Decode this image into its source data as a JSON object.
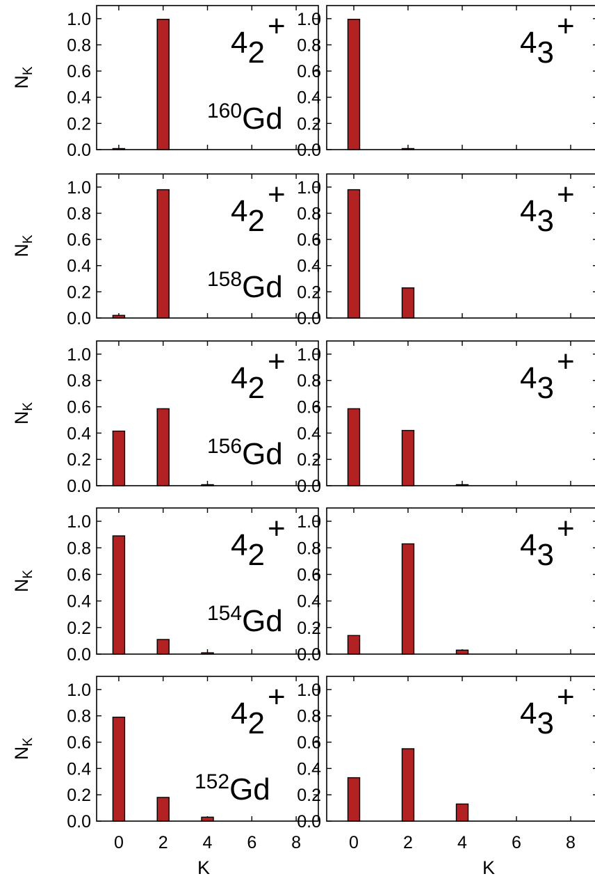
{
  "chart_data": {
    "type": "bar",
    "x_label": "K",
    "y_label_base": "N",
    "y_label_sub": "K",
    "x_ticks": [
      0,
      2,
      4,
      6,
      8
    ],
    "y_ticks": [
      "0.0",
      "0.2",
      "0.4",
      "0.6",
      "0.8",
      "1.0"
    ],
    "xlim": [
      -1,
      9
    ],
    "ylim": [
      0,
      1.1
    ],
    "bar_color": "#b22222",
    "rows": [
      {
        "nucleus_mass": "160",
        "nucleus_symbol": "Gd",
        "panels": [
          {
            "state_base": "4",
            "state_sub": "2",
            "state_sup": "+",
            "K": [
              0,
              2
            ],
            "values": [
              0.005,
              0.995
            ]
          },
          {
            "state_base": "4",
            "state_sub": "3",
            "state_sup": "+",
            "K": [
              0,
              2
            ],
            "values": [
              0.995,
              0.005
            ]
          }
        ]
      },
      {
        "nucleus_mass": "158",
        "nucleus_symbol": "Gd",
        "panels": [
          {
            "state_base": "4",
            "state_sub": "2",
            "state_sup": "+",
            "K": [
              0,
              2
            ],
            "values": [
              0.02,
              0.98
            ]
          },
          {
            "state_base": "4",
            "state_sub": "3",
            "state_sup": "+",
            "K": [
              0,
              2
            ],
            "values": [
              0.98,
              0.23
            ]
          }
        ]
      },
      {
        "nucleus_mass": "156",
        "nucleus_symbol": "Gd",
        "panels": [
          {
            "state_base": "4",
            "state_sub": "2",
            "state_sup": "+",
            "K": [
              0,
              2,
              4
            ],
            "values": [
              0.415,
              0.585,
              0.004
            ]
          },
          {
            "state_base": "4",
            "state_sub": "3",
            "state_sup": "+",
            "K": [
              0,
              2,
              4
            ],
            "values": [
              0.585,
              0.42,
              0.003
            ]
          }
        ]
      },
      {
        "nucleus_mass": "154",
        "nucleus_symbol": "Gd",
        "panels": [
          {
            "state_base": "4",
            "state_sub": "2",
            "state_sup": "+",
            "K": [
              0,
              2,
              4
            ],
            "values": [
              0.89,
              0.11,
              0.01
            ]
          },
          {
            "state_base": "4",
            "state_sub": "3",
            "state_sup": "+",
            "K": [
              0,
              2,
              4
            ],
            "values": [
              0.14,
              0.83,
              0.03
            ]
          }
        ]
      },
      {
        "nucleus_mass": "152",
        "nucleus_symbol": "Gd",
        "panels": [
          {
            "state_base": "4",
            "state_sub": "2",
            "state_sup": "+",
            "K": [
              0,
              2,
              4
            ],
            "values": [
              0.79,
              0.18,
              0.03
            ]
          },
          {
            "state_base": "4",
            "state_sub": "3",
            "state_sup": "+",
            "K": [
              0,
              2,
              4
            ],
            "values": [
              0.33,
              0.55,
              0.13
            ]
          }
        ]
      }
    ]
  }
}
